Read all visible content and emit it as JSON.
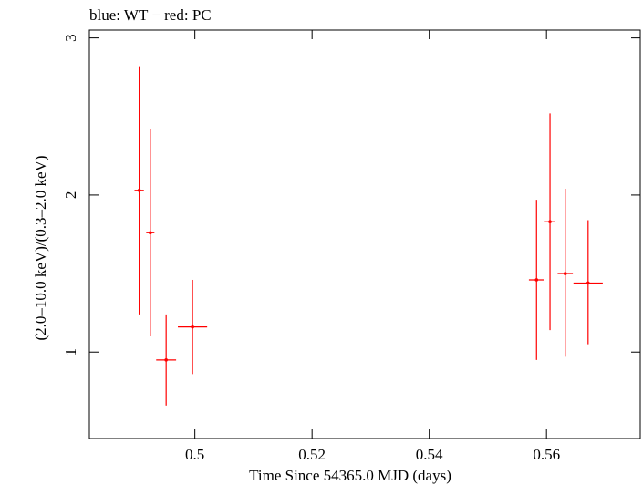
{
  "chart_data": {
    "type": "scatter",
    "title": "blue: WT − red: PC",
    "xlabel": "Time Since 54365.0 MJD (days)",
    "ylabel": "(2.0–10.0 keV)/(0.3–2.0 keV)",
    "xlim": [
      0.482,
      0.576
    ],
    "ylim": [
      0.45,
      3.05
    ],
    "x_ticks": [
      {
        "value": 0.5,
        "label": "0.5"
      },
      {
        "value": 0.52,
        "label": "0.52"
      },
      {
        "value": 0.54,
        "label": "0.54"
      },
      {
        "value": 0.56,
        "label": "0.56"
      }
    ],
    "y_ticks": [
      {
        "value": 1,
        "label": "1"
      },
      {
        "value": 2,
        "label": "2"
      },
      {
        "value": 3,
        "label": "3"
      }
    ],
    "series": [
      {
        "name": "PC",
        "color": "#ff0000",
        "points": [
          {
            "x": 0.4905,
            "xerr": 0.0008,
            "y": 2.03,
            "ylo": 1.24,
            "yhi": 2.82
          },
          {
            "x": 0.4924,
            "xerr": 0.0007,
            "y": 1.76,
            "ylo": 1.1,
            "yhi": 2.42
          },
          {
            "x": 0.4951,
            "xerr": 0.0017,
            "y": 0.95,
            "ylo": 0.66,
            "yhi": 1.24
          },
          {
            "x": 0.4996,
            "xerr": 0.0025,
            "y": 1.16,
            "ylo": 0.86,
            "yhi": 1.46
          },
          {
            "x": 0.5583,
            "xerr": 0.0013,
            "y": 1.46,
            "ylo": 0.95,
            "yhi": 1.97
          },
          {
            "x": 0.5606,
            "xerr": 0.0009,
            "y": 1.83,
            "ylo": 1.14,
            "yhi": 2.52
          },
          {
            "x": 0.5632,
            "xerr": 0.0013,
            "y": 1.5,
            "ylo": 0.97,
            "yhi": 2.04
          },
          {
            "x": 0.5671,
            "xerr": 0.0025,
            "y": 1.44,
            "ylo": 1.05,
            "yhi": 1.84
          }
        ]
      }
    ]
  }
}
